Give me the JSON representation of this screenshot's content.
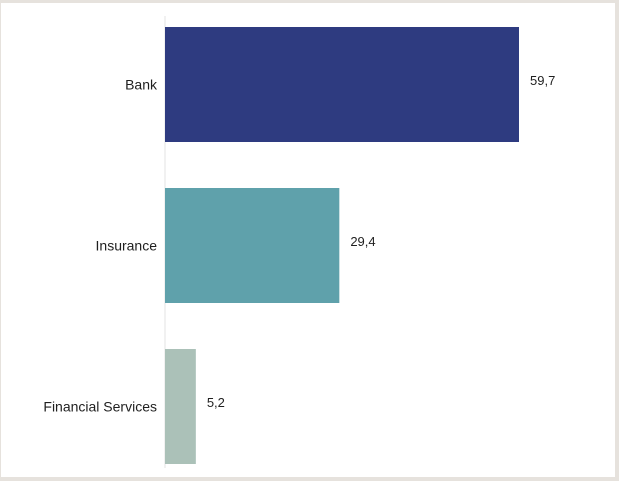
{
  "chart_data": {
    "type": "bar",
    "orientation": "horizontal",
    "categories": [
      "Bank",
      "Insurance",
      "Financial Services"
    ],
    "values": [
      59.7,
      29.4,
      5.2
    ],
    "value_labels": [
      "59,7",
      "29,4",
      "5,2"
    ],
    "colors": [
      "#2e3b80",
      "#5fa1ab",
      "#abc1b8"
    ],
    "title": "",
    "xlabel": "",
    "ylabel": "",
    "xlim": [
      0,
      59.7
    ],
    "grid": false,
    "legend": "none"
  }
}
